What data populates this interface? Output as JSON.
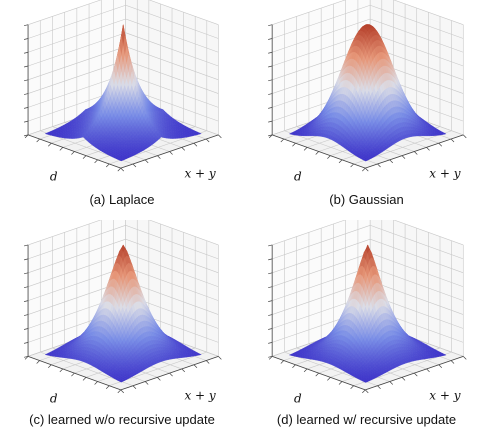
{
  "chart_data": [
    {
      "type": "surface",
      "caption": "(a) Laplace",
      "xlabel": "d",
      "ylabel": "x + y",
      "shape": "laplace",
      "z_range": [
        0,
        1
      ],
      "grid": true
    },
    {
      "type": "surface",
      "caption": "(b) Gaussian",
      "xlabel": "d",
      "ylabel": "x + y",
      "shape": "gaussian",
      "z_range": [
        0,
        1
      ],
      "grid": true
    },
    {
      "type": "surface",
      "caption": "(c) learned w/o recursive update",
      "xlabel": "d",
      "ylabel": "x + y",
      "shape": "learned",
      "z_range": [
        0,
        1
      ],
      "grid": true
    },
    {
      "type": "surface",
      "caption": "(d) learned w/ recursive update",
      "xlabel": "d",
      "ylabel": "x + y",
      "shape": "learned-narrow",
      "z_range": [
        0,
        1
      ],
      "grid": true
    }
  ],
  "colors": {
    "floor": "#3b30c8",
    "peak": "#b5402b",
    "mid": "#dcdde6",
    "grid": "#c8c8c8",
    "axis": "#444444"
  }
}
